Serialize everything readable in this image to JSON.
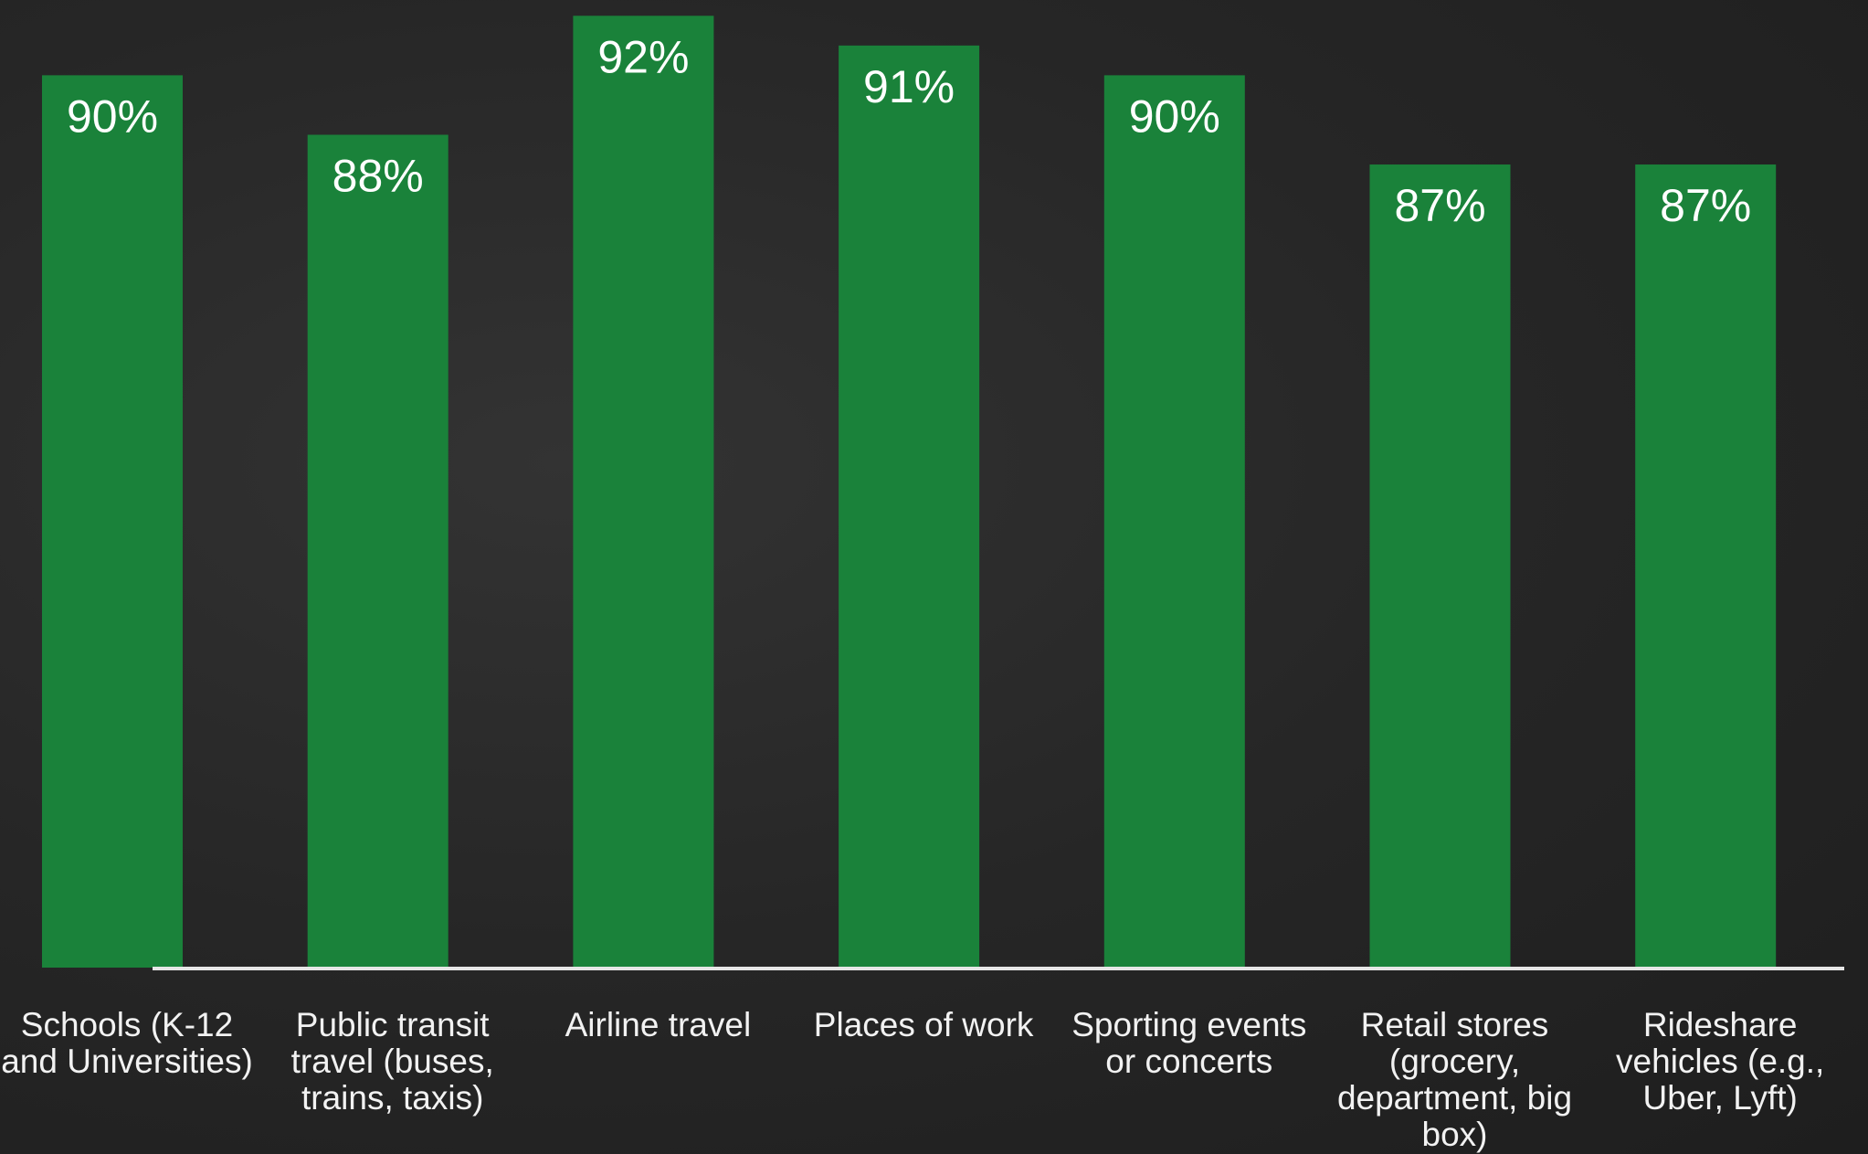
{
  "chart_data": {
    "type": "bar",
    "categories": [
      "Schools (K-12 and Universities)",
      "Public transit travel (buses, trains, taxis)",
      "Airline travel",
      "Places of work",
      "Sporting events or concerts",
      "Retail stores (grocery, department, big box)",
      "Rideshare vehicles (e.g., Uber, Lyft)"
    ],
    "values": [
      90,
      88,
      92,
      91,
      90,
      87,
      87
    ],
    "value_labels": [
      "90%",
      "88%",
      "92%",
      "91%",
      "90%",
      "87%",
      "87%"
    ],
    "color": "#1a823a",
    "ylim": [
      60,
      92.5
    ]
  }
}
